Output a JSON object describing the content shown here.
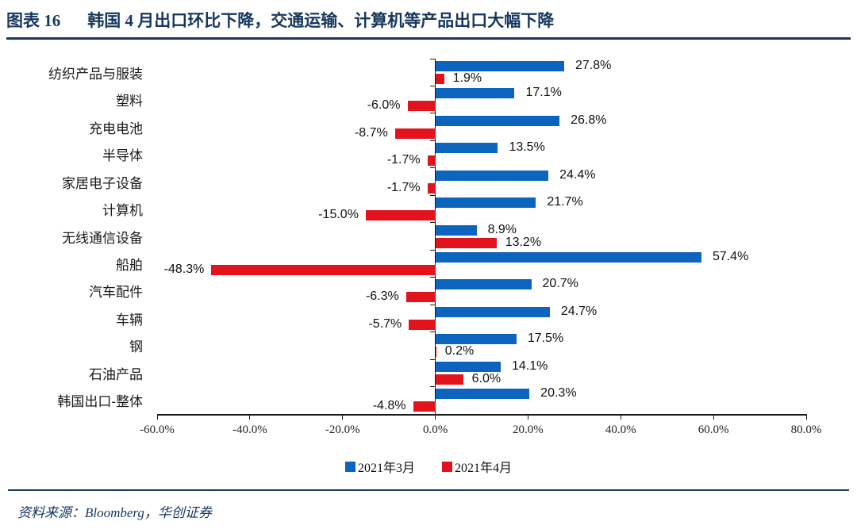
{
  "header": {
    "figure_label": "图表 16",
    "figure_title": "韩国 4 月出口环比下降，交通运输、计算机等产品出口大幅下降"
  },
  "chart_data": {
    "type": "bar",
    "orientation": "horizontal",
    "categories": [
      "纺织产品与服装",
      "塑料",
      "充电电池",
      "半导体",
      "家居电子设备",
      "计算机",
      "无线通信设备",
      "船舶",
      "汽车配件",
      "车辆",
      "钢",
      "石油产品",
      "韩国出口-整体"
    ],
    "series": [
      {
        "name": "2021年3月",
        "color": "#0C64BE",
        "values": [
          27.8,
          17.1,
          26.8,
          13.5,
          24.4,
          21.7,
          8.9,
          57.4,
          20.7,
          24.7,
          17.5,
          14.1,
          20.3
        ]
      },
      {
        "name": "2021年4月",
        "color": "#E3131E",
        "values": [
          1.9,
          -6.0,
          -8.7,
          -1.7,
          -1.7,
          -15.0,
          13.2,
          -48.3,
          -6.3,
          -5.7,
          0.2,
          6.0,
          -4.8
        ]
      }
    ],
    "xlim": [
      -60,
      80
    ],
    "x_tick_values": [
      -60,
      -40,
      -20,
      0,
      20,
      40,
      60,
      80
    ],
    "x_tick_labels": [
      "-60.0%",
      "-40.0%",
      "-20.0%",
      "0.0%",
      "20.0%",
      "40.0%",
      "60.0%",
      "80.0%"
    ],
    "value_label_suffix": "%",
    "grid": false,
    "legend_position": "bottom",
    "data_labels": true
  },
  "footer": {
    "source": "资料来源：Bloomberg，华创证券"
  },
  "colors": {
    "accent": "#17375E",
    "series_march": "#0C64BE",
    "series_april": "#E3131E"
  }
}
